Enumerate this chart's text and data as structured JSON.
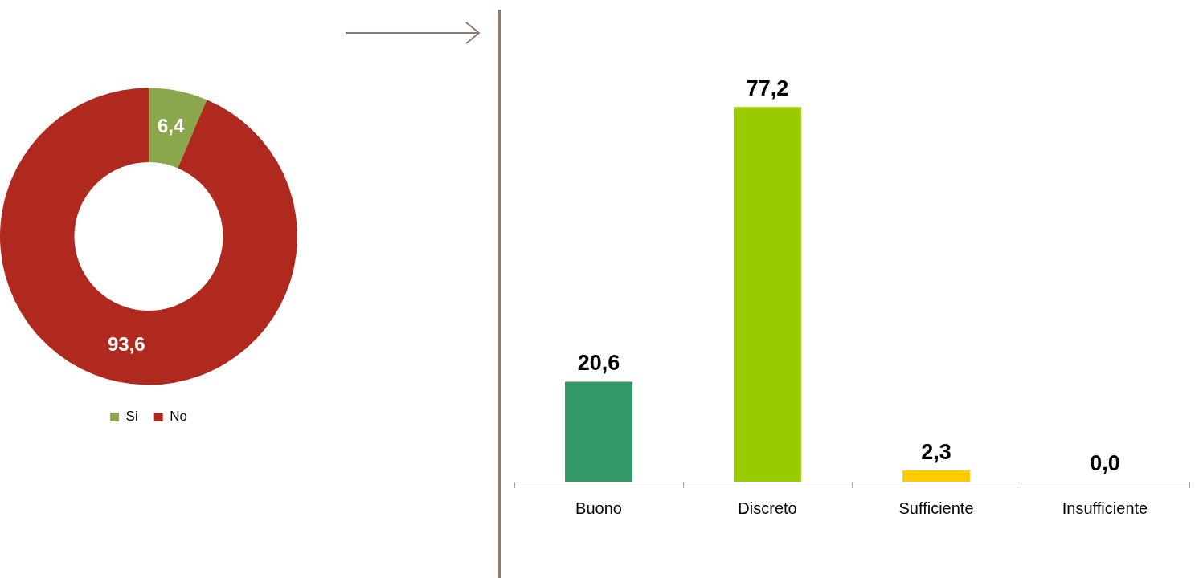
{
  "chart_data": [
    {
      "type": "donut",
      "categories": [
        "Si",
        "No"
      ],
      "values": [
        6.4,
        93.6
      ],
      "colors": [
        "#8aa84b",
        "#b0291e"
      ],
      "value_labels": [
        "6,4",
        "93,6"
      ],
      "legend": "bottom"
    },
    {
      "type": "bar",
      "categories": [
        "Buono",
        "Discreto",
        "Sufficiente",
        "Insufficiente"
      ],
      "values": [
        20.6,
        77.2,
        2.3,
        0.0
      ],
      "colors": [
        "#339966",
        "#99cc00",
        "#ffcc00",
        "#c0504d"
      ],
      "value_labels": [
        "20,6",
        "77,2",
        "2,3",
        "0,0"
      ]
    }
  ]
}
